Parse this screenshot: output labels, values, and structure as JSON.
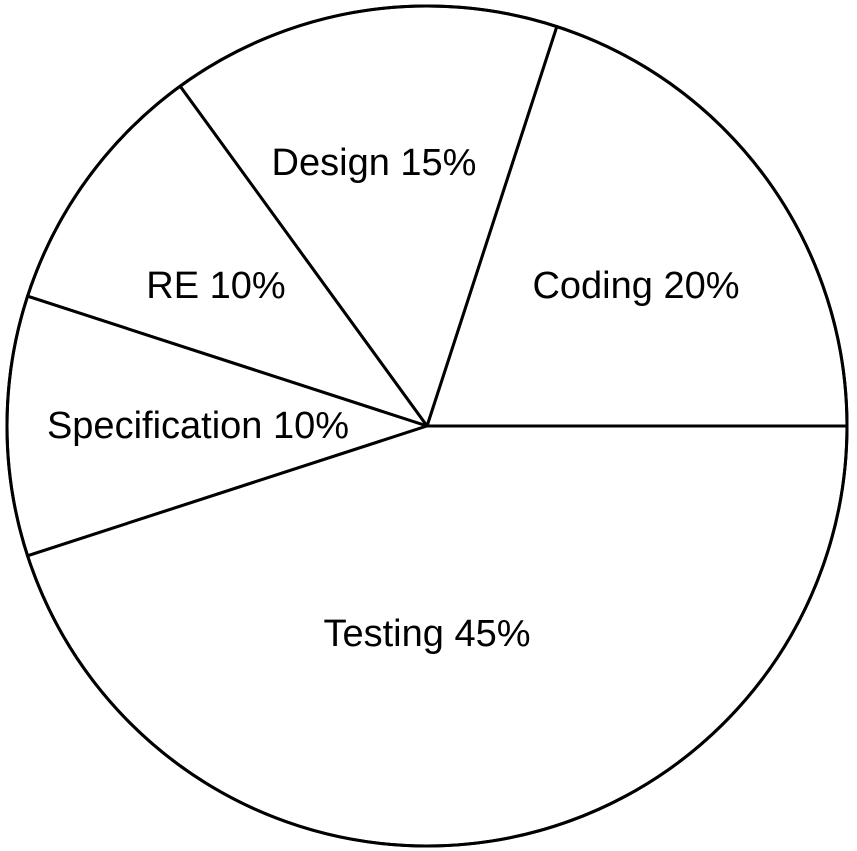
{
  "chart_data": {
    "type": "pie",
    "slices": [
      {
        "label": "Coding 20%",
        "name": "Coding",
        "value": 20
      },
      {
        "label": "Design 15%",
        "name": "Design",
        "value": 15
      },
      {
        "label": "RE 10%",
        "name": "RE",
        "value": 10
      },
      {
        "label": "Specification 10%",
        "name": "Specification",
        "value": 10
      },
      {
        "label": "Testing 45%",
        "name": "Testing",
        "value": 45
      }
    ],
    "start_angle_deg": 0,
    "direction": "counterclockwise",
    "slice_fill": "#ffffff",
    "stroke_color": "#000000",
    "legend": "none"
  }
}
